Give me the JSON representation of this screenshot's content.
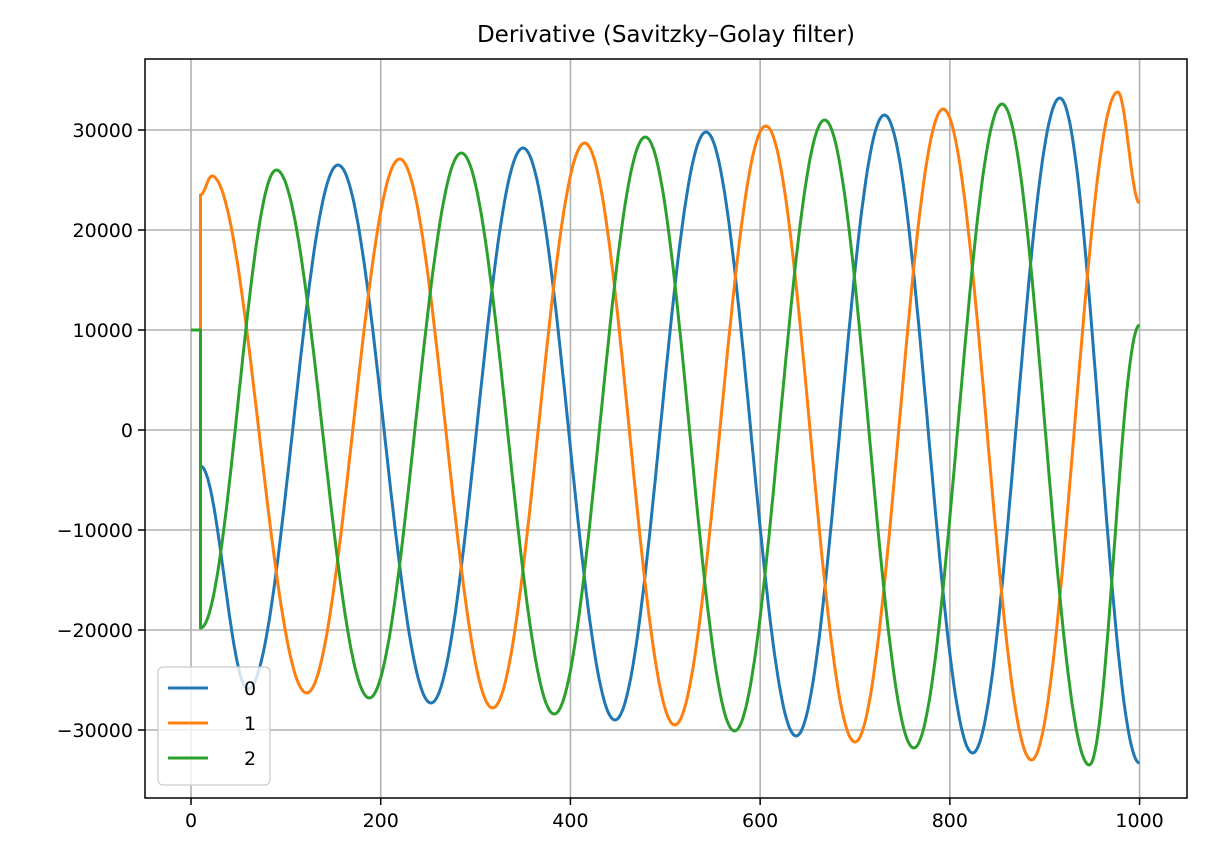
{
  "chart_data": {
    "type": "line",
    "title": "Derivative (Savitzky–Golay filter)",
    "xlabel": "",
    "ylabel": "",
    "xlim": [
      -48.5,
      1050
    ],
    "ylim": [
      -36800,
      37100
    ],
    "xticks": [
      0,
      200,
      400,
      600,
      800,
      1000
    ],
    "xtick_labels": [
      "0",
      "200",
      "400",
      "600",
      "800",
      "1000"
    ],
    "yticks": [
      -30000,
      -20000,
      -10000,
      0,
      10000,
      20000,
      30000
    ],
    "ytick_labels": [
      "−30000",
      "−20000",
      "−10000",
      "0",
      "10000",
      "20000",
      "30000"
    ],
    "grid": true,
    "legend_placement": "lower-left",
    "interpolation_note": "points are key points (jumps/extrema); curve between them is sinusoidal",
    "series": [
      {
        "name": "0",
        "color": "#1f77b4",
        "x": [
          0,
          10,
          10,
          60,
          155,
          253,
          350,
          447,
          543,
          638,
          731,
          824,
          916,
          1000
        ],
        "y": [
          10000,
          10000,
          -3600,
          -25900,
          26500,
          -27300,
          28200,
          -29000,
          29800,
          -30600,
          31500,
          -32300,
          33200,
          -33300
        ]
      },
      {
        "name": "1",
        "color": "#ff7f0e",
        "x": [
          0,
          10,
          10,
          22,
          122,
          220,
          318,
          415,
          510,
          606,
          700,
          793,
          886,
          977,
          1000
        ],
        "y": [
          10000,
          10000,
          23500,
          25400,
          -26300,
          27100,
          -27800,
          28700,
          -29500,
          30400,
          -31200,
          32100,
          -33000,
          33800,
          22700
        ]
      },
      {
        "name": "2",
        "color": "#2ca02c",
        "x": [
          0,
          10,
          10,
          90,
          188,
          285,
          383,
          479,
          573,
          668,
          762,
          855,
          947,
          1000
        ],
        "y": [
          10000,
          10000,
          -19800,
          26000,
          -26800,
          27700,
          -28400,
          29300,
          -30100,
          31000,
          -31800,
          32600,
          -33500,
          10500
        ]
      }
    ]
  }
}
